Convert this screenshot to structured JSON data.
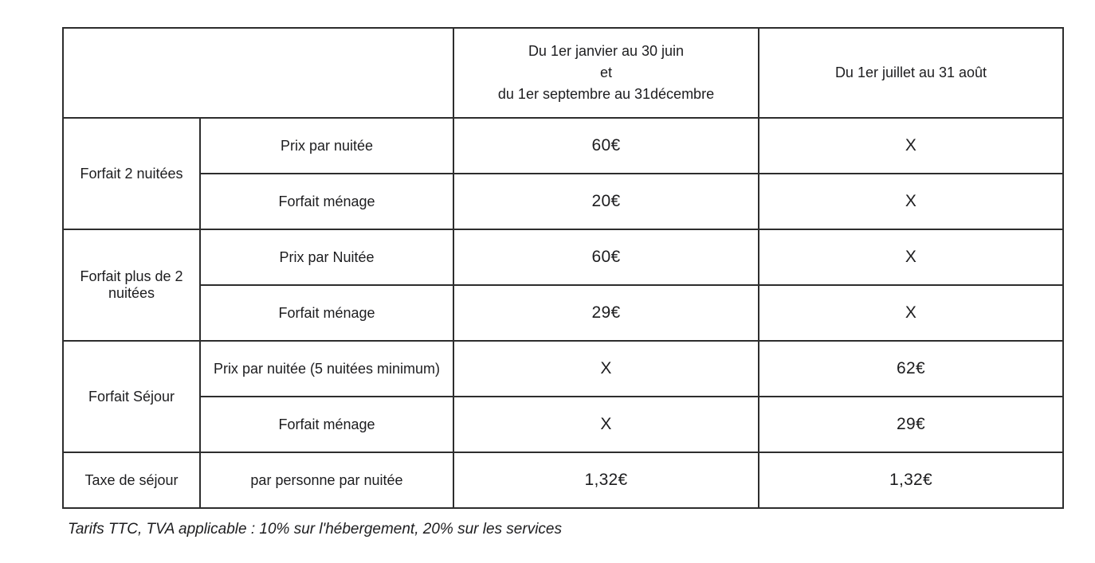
{
  "table": {
    "header": {
      "period1_lines": [
        "Du 1er janvier au 30 juin",
        "et",
        "du 1er septembre au 31décembre"
      ],
      "period2": "Du 1er juillet au 31 août"
    },
    "groups": [
      {
        "label": "Forfait 2 nuitées",
        "rows": [
          {
            "label": "Prix par nuitée",
            "values": [
              "60€",
              "X"
            ]
          },
          {
            "label": "Forfait ménage",
            "values": [
              "20€",
              "X"
            ]
          }
        ]
      },
      {
        "label": "Forfait plus de 2 nuitées",
        "rows": [
          {
            "label": "Prix par Nuitée",
            "values": [
              "60€",
              "X"
            ]
          },
          {
            "label": "Forfait ménage",
            "values": [
              "29€",
              "X"
            ]
          }
        ]
      },
      {
        "label": "Forfait Séjour",
        "rows": [
          {
            "label": "Prix par nuitée (5 nuitées minimum)",
            "values": [
              "X",
              "62€"
            ]
          },
          {
            "label": "Forfait ménage",
            "values": [
              "X",
              "29€"
            ]
          }
        ]
      },
      {
        "label": "Taxe de séjour",
        "rows": [
          {
            "label": "par personne par nuitée",
            "values": [
              "1,32€",
              "1,32€"
            ]
          }
        ]
      }
    ]
  },
  "footnote": "Tarifs TTC, TVA applicable : 10% sur l'hébergement, 20% sur les services"
}
